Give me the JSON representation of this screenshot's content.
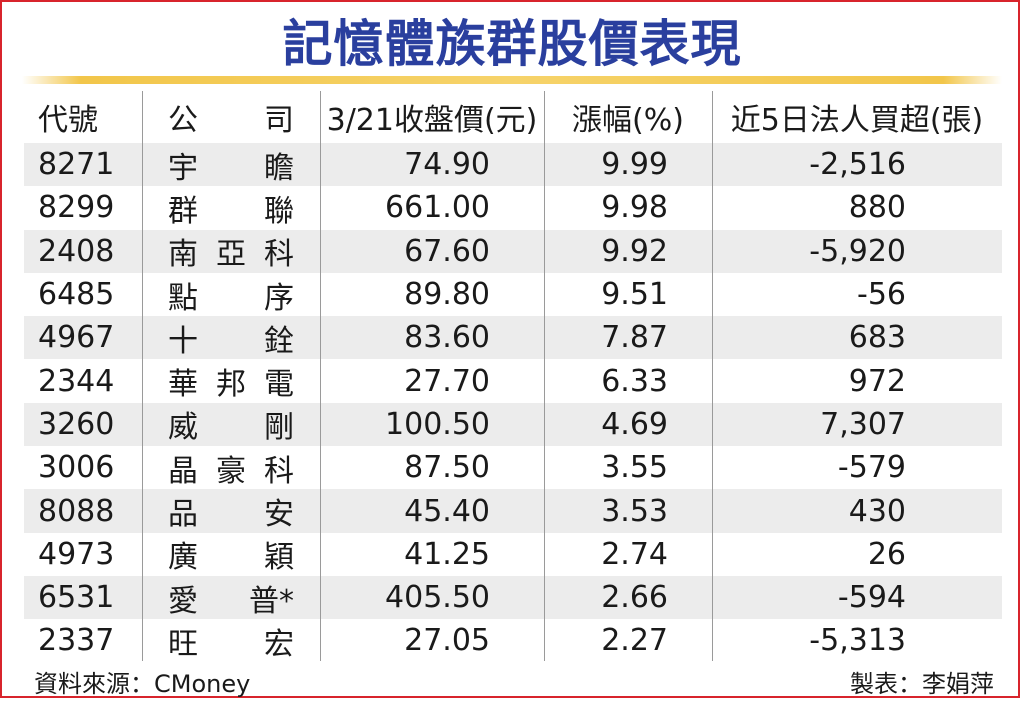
{
  "title": "記憶體族群股價表現",
  "chart_data": {
    "type": "table",
    "columns": [
      "代號",
      "公司",
      "3/21收盤價(元)",
      "漲幅(%)",
      "近5日法人買超(張)"
    ],
    "rows": [
      {
        "code": "8271",
        "name": [
          "宇",
          "瞻"
        ],
        "price": "74.90",
        "change": "9.99",
        "net_buy": "-2,516"
      },
      {
        "code": "8299",
        "name": [
          "群",
          "聯"
        ],
        "price": "661.00",
        "change": "9.98",
        "net_buy": "880"
      },
      {
        "code": "2408",
        "name": [
          "南",
          "亞",
          "科"
        ],
        "price": "67.60",
        "change": "9.92",
        "net_buy": "-5,920"
      },
      {
        "code": "6485",
        "name": [
          "點",
          "序"
        ],
        "price": "89.80",
        "change": "9.51",
        "net_buy": "-56"
      },
      {
        "code": "4967",
        "name": [
          "十",
          "銓"
        ],
        "price": "83.60",
        "change": "7.87",
        "net_buy": "683"
      },
      {
        "code": "2344",
        "name": [
          "華",
          "邦",
          "電"
        ],
        "price": "27.70",
        "change": "6.33",
        "net_buy": "972"
      },
      {
        "code": "3260",
        "name": [
          "威",
          "剛"
        ],
        "price": "100.50",
        "change": "4.69",
        "net_buy": "7,307"
      },
      {
        "code": "3006",
        "name": [
          "晶",
          "豪",
          "科"
        ],
        "price": "87.50",
        "change": "3.55",
        "net_buy": "-579"
      },
      {
        "code": "8088",
        "name": [
          "品",
          "安"
        ],
        "price": "45.40",
        "change": "3.53",
        "net_buy": "430"
      },
      {
        "code": "4973",
        "name": [
          "廣",
          "穎"
        ],
        "price": "41.25",
        "change": "2.74",
        "net_buy": "26"
      },
      {
        "code": "6531",
        "name": [
          "愛",
          "普*"
        ],
        "price": "405.50",
        "change": "2.66",
        "net_buy": "-594"
      },
      {
        "code": "2337",
        "name": [
          "旺",
          "宏"
        ],
        "price": "27.05",
        "change": "2.27",
        "net_buy": "-5,313"
      }
    ]
  },
  "header": {
    "code": "代號",
    "name_a": "公",
    "name_b": "司",
    "price": "3/21收盤價(元)",
    "change": "漲幅(%)",
    "net_buy": "近5日法人買超(張)"
  },
  "footer": {
    "source": "資料來源：CMoney",
    "author": "製表：李娟萍"
  },
  "colors": {
    "title": "#2a3f9e",
    "border": "#d8242c",
    "stripe": "#ececec",
    "gold": "#f2c64a"
  }
}
